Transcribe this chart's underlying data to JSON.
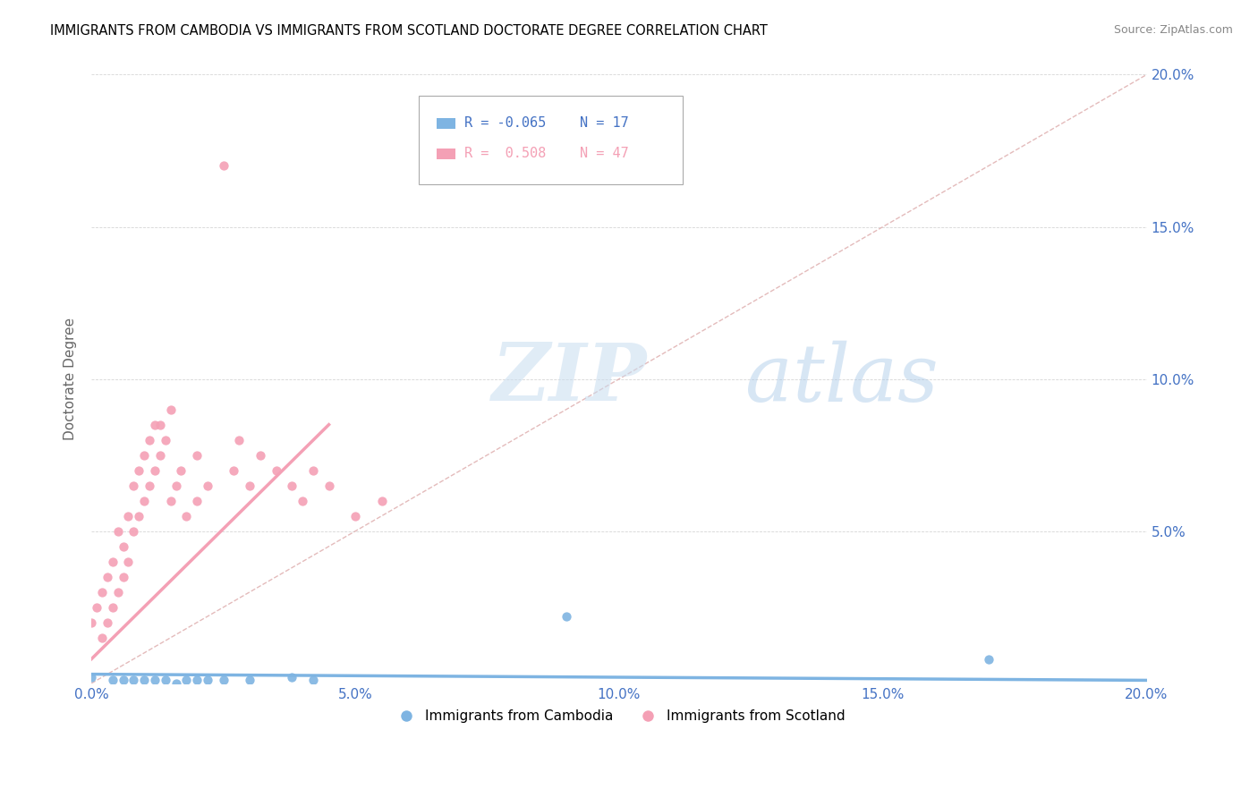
{
  "title": "IMMIGRANTS FROM CAMBODIA VS IMMIGRANTS FROM SCOTLAND DOCTORATE DEGREE CORRELATION CHART",
  "source": "Source: ZipAtlas.com",
  "ylabel": "Doctorate Degree",
  "xlim": [
    0.0,
    0.2
  ],
  "ylim": [
    0.0,
    0.2
  ],
  "xtick_labels": [
    "0.0%",
    "",
    "5.0%",
    "",
    "10.0%",
    "",
    "15.0%",
    "",
    "20.0%"
  ],
  "ytick_labels_right": [
    "",
    "5.0%",
    "10.0%",
    "15.0%",
    "20.0%"
  ],
  "xtick_vals": [
    0.0,
    0.025,
    0.05,
    0.075,
    0.1,
    0.125,
    0.15,
    0.175,
    0.2
  ],
  "ytick_vals": [
    0.0,
    0.05,
    0.1,
    0.15,
    0.2
  ],
  "color_cambodia": "#7EB4E2",
  "color_scotland": "#F4A0B5",
  "color_diagonal": "#DDAAAA",
  "color_tick": "#4472C4",
  "watermark_zip": "ZIP",
  "watermark_atlas": "atlas",
  "scatter_cambodia": [
    [
      0.0,
      0.002
    ],
    [
      0.004,
      0.001
    ],
    [
      0.006,
      0.001
    ],
    [
      0.008,
      0.001
    ],
    [
      0.01,
      0.001
    ],
    [
      0.012,
      0.001
    ],
    [
      0.014,
      0.001
    ],
    [
      0.016,
      0.0
    ],
    [
      0.018,
      0.001
    ],
    [
      0.02,
      0.001
    ],
    [
      0.022,
      0.001
    ],
    [
      0.025,
      0.001
    ],
    [
      0.03,
      0.001
    ],
    [
      0.038,
      0.002
    ],
    [
      0.042,
      0.001
    ],
    [
      0.09,
      0.022
    ],
    [
      0.17,
      0.008
    ]
  ],
  "scatter_scotland": [
    [
      0.0,
      0.02
    ],
    [
      0.001,
      0.025
    ],
    [
      0.002,
      0.015
    ],
    [
      0.002,
      0.03
    ],
    [
      0.003,
      0.02
    ],
    [
      0.003,
      0.035
    ],
    [
      0.004,
      0.025
    ],
    [
      0.004,
      0.04
    ],
    [
      0.005,
      0.03
    ],
    [
      0.005,
      0.05
    ],
    [
      0.006,
      0.035
    ],
    [
      0.006,
      0.045
    ],
    [
      0.007,
      0.04
    ],
    [
      0.007,
      0.055
    ],
    [
      0.008,
      0.05
    ],
    [
      0.008,
      0.065
    ],
    [
      0.009,
      0.055
    ],
    [
      0.009,
      0.07
    ],
    [
      0.01,
      0.06
    ],
    [
      0.01,
      0.075
    ],
    [
      0.011,
      0.065
    ],
    [
      0.011,
      0.08
    ],
    [
      0.012,
      0.07
    ],
    [
      0.012,
      0.085
    ],
    [
      0.013,
      0.075
    ],
    [
      0.013,
      0.085
    ],
    [
      0.014,
      0.08
    ],
    [
      0.015,
      0.09
    ],
    [
      0.015,
      0.06
    ],
    [
      0.016,
      0.065
    ],
    [
      0.017,
      0.07
    ],
    [
      0.018,
      0.055
    ],
    [
      0.02,
      0.06
    ],
    [
      0.02,
      0.075
    ],
    [
      0.022,
      0.065
    ],
    [
      0.025,
      0.17
    ],
    [
      0.027,
      0.07
    ],
    [
      0.028,
      0.08
    ],
    [
      0.03,
      0.065
    ],
    [
      0.032,
      0.075
    ],
    [
      0.035,
      0.07
    ],
    [
      0.038,
      0.065
    ],
    [
      0.04,
      0.06
    ],
    [
      0.042,
      0.07
    ],
    [
      0.045,
      0.065
    ],
    [
      0.05,
      0.055
    ],
    [
      0.055,
      0.06
    ]
  ],
  "trendline_cambodia": [
    [
      0.0,
      0.003
    ],
    [
      0.2,
      0.001
    ]
  ],
  "trendline_scotland": [
    [
      0.0,
      0.008
    ],
    [
      0.045,
      0.085
    ]
  ]
}
